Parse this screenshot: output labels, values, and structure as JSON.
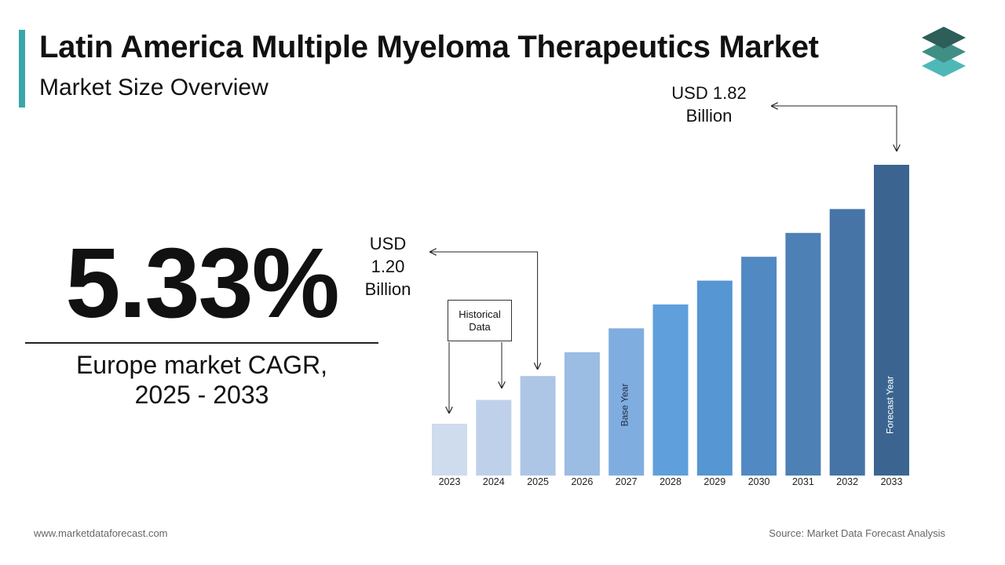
{
  "header": {
    "title": "Latin America Multiple Myeloma Therapeutics Market",
    "subtitle": "Market Size Overview"
  },
  "kpi": {
    "cagr_value": "5.33%",
    "cagr_label_line1": "Europe market CAGR,",
    "cagr_label_line2": "2025 - 2033"
  },
  "callouts": {
    "start_value": "USD\n1.20\nBillion",
    "end_value": "USD 1.82\nBillion",
    "historical_label": "Historical\nData",
    "base_year_label": "Base Year",
    "forecast_year_label": "Forecast Year"
  },
  "footer": {
    "website": "www.marketdataforecast.com",
    "source": "Source: Market Data Forecast Analysis"
  },
  "colors": {
    "accent": "#3aa6a8",
    "logo_top": "#2e5e5a",
    "logo_middle": "#3f8f84",
    "logo_bottom": "#4fb8b6"
  },
  "chart_data": {
    "type": "bar",
    "categories": [
      "2023",
      "2024",
      "2025",
      "2026",
      "2027",
      "2028",
      "2029",
      "2030",
      "2031",
      "2032",
      "2033"
    ],
    "values": [
      1.06,
      1.13,
      1.2,
      1.27,
      1.34,
      1.41,
      1.48,
      1.55,
      1.62,
      1.69,
      1.82
    ],
    "bar_colors": [
      "#cfdcee",
      "#bfd1ea",
      "#adc6e6",
      "#9bbce3",
      "#80ade0",
      "#5f9fdb",
      "#5696d2",
      "#5189c2",
      "#4d80b5",
      "#4674a6",
      "#3b6590"
    ],
    "title": "",
    "xlabel": "",
    "ylabel": "",
    "grid": false,
    "legend": "none"
  }
}
